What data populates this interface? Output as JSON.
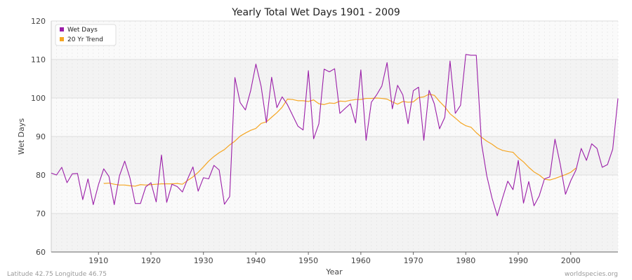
{
  "chart_data": {
    "type": "line",
    "title": "Yearly Total Wet Days 1901 - 2009",
    "xlabel": "Year",
    "ylabel": "Wet Days",
    "xlim": [
      1901,
      2009
    ],
    "ylim": [
      60,
      120
    ],
    "x_ticks": [
      1910,
      1920,
      1930,
      1940,
      1950,
      1960,
      1970,
      1980,
      1990,
      2000
    ],
    "y_ticks": [
      60,
      70,
      80,
      90,
      100,
      110,
      120
    ],
    "grid": true,
    "legend_position": "top-left",
    "series": [
      {
        "name": "Wet Days",
        "color": "#9b1fa8",
        "x_start": 1901,
        "values": [
          80.5,
          80.0,
          82.0,
          78.0,
          80.3,
          80.4,
          73.6,
          79.0,
          72.3,
          77.5,
          81.6,
          79.6,
          72.3,
          79.8,
          83.6,
          79.2,
          72.6,
          72.6,
          76.9,
          78.0,
          73.0,
          85.2,
          72.9,
          77.6,
          77.0,
          75.6,
          79.0,
          82.1,
          75.8,
          79.3,
          79.0,
          82.5,
          81.3,
          72.4,
          74.4,
          105.3,
          98.8,
          96.9,
          101.9,
          108.8,
          103.0,
          93.6,
          105.4,
          97.5,
          100.3,
          98.3,
          95.5,
          92.7,
          91.7,
          107.1,
          89.4,
          93.3,
          107.5,
          106.8,
          107.6,
          96.0,
          97.3,
          98.5,
          93.5,
          107.3,
          89.0,
          98.9,
          100.8,
          103.1,
          109.2,
          97.2,
          103.3,
          100.8,
          93.3,
          101.9,
          102.8,
          89.0,
          102.0,
          98.5,
          92.0,
          95.0,
          109.6,
          96.0,
          98.1,
          111.3,
          111.1,
          111.1,
          88.2,
          79.8,
          74.0,
          69.4,
          74.0,
          78.4,
          76.2,
          83.8,
          72.7,
          78.3,
          72.0,
          74.6,
          79.0,
          79.5,
          89.3,
          82.8,
          75.0,
          78.5,
          81.3,
          86.9,
          83.8,
          88.1,
          86.9,
          82.0,
          82.7,
          86.7,
          99.9
        ]
      },
      {
        "name": "20 Yr Trend",
        "color": "#f5a623",
        "x_start": 1911,
        "values": [
          77.8,
          77.9,
          77.6,
          77.4,
          77.4,
          77.2,
          77.1,
          77.5,
          77.4,
          77.5,
          77.6,
          77.7,
          77.7,
          77.7,
          77.8,
          77.6,
          78.6,
          79.5,
          80.7,
          82.1,
          83.6,
          84.8,
          85.8,
          86.6,
          87.8,
          88.8,
          90.1,
          90.9,
          91.6,
          92.1,
          93.4,
          93.8,
          95.0,
          96.2,
          97.6,
          99.7,
          99.6,
          99.3,
          99.3,
          99.1,
          99.5,
          98.5,
          98.3,
          98.7,
          98.6,
          99.2,
          99.1,
          99.4,
          99.6,
          99.6,
          99.9,
          99.9,
          100.0,
          99.9,
          99.7,
          99.0,
          98.4,
          99.1,
          98.9,
          99.0,
          100.1,
          100.3,
          101.0,
          100.7,
          99.1,
          97.7,
          95.9,
          94.8,
          93.6,
          92.8,
          92.4,
          91.0,
          89.8,
          88.8,
          88.0,
          87.0,
          86.4,
          86.1,
          85.9,
          84.5,
          83.4,
          82.0,
          80.8,
          80.0,
          78.9,
          78.7,
          79.1,
          79.6,
          80.1,
          80.7,
          81.8
        ]
      }
    ]
  },
  "footer": {
    "location": "Latitude 42.75 Longitude 46.75",
    "source": "worldspecies.org"
  }
}
